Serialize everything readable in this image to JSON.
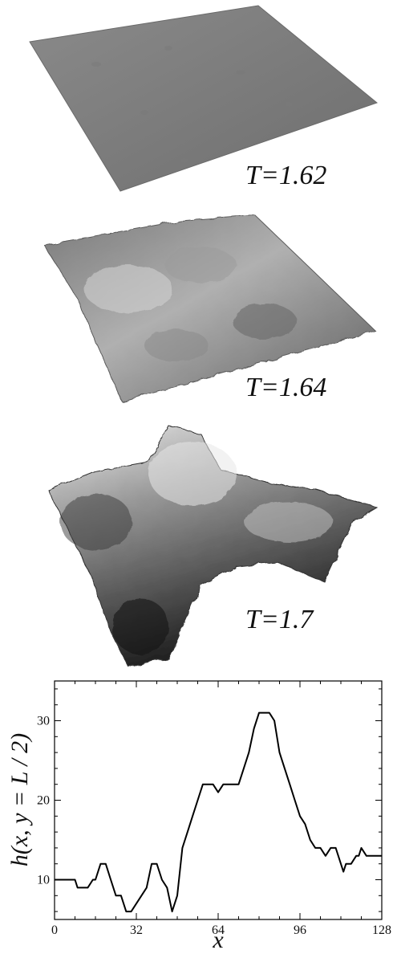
{
  "panels": [
    {
      "label": "T=1.62",
      "roughness": 0.04
    },
    {
      "label": "T=1.64",
      "roughness": 0.35
    },
    {
      "label": "T=1.7",
      "roughness": 1.0
    }
  ],
  "chart_data": {
    "type": "line",
    "xlabel": "x",
    "ylabel": "h(x, y = L / 2)",
    "xlim": [
      0,
      128
    ],
    "ylim": [
      5,
      35
    ],
    "xticks": [
      0,
      32,
      64,
      96,
      128
    ],
    "yticks": [
      10,
      20,
      30
    ],
    "grid": false,
    "series": [
      {
        "x": [
          0,
          8,
          9,
          12,
          13,
          15,
          16,
          18,
          20,
          22,
          24,
          26,
          28,
          30,
          34,
          36,
          38,
          40,
          42,
          44,
          46,
          48,
          50,
          52,
          54,
          56,
          58,
          60,
          62,
          64,
          66,
          67,
          68,
          70,
          72,
          74,
          76,
          78,
          80,
          82,
          84,
          86,
          88,
          90,
          92,
          94,
          96,
          98,
          100,
          102,
          104,
          106,
          108,
          110,
          112,
          113,
          114,
          116,
          118,
          119,
          120,
          122,
          124,
          126,
          128
        ],
        "y": [
          10,
          10,
          9,
          9,
          9,
          10,
          10,
          12,
          12,
          10,
          8,
          8,
          6,
          6,
          8,
          9,
          12,
          12,
          10,
          9,
          6,
          8,
          14,
          16,
          18,
          20,
          22,
          22,
          22,
          21,
          22,
          22,
          22,
          22,
          22,
          24,
          26,
          29,
          31,
          31,
          31,
          30,
          26,
          24,
          22,
          20,
          18,
          17,
          15,
          14,
          14,
          13,
          14,
          14,
          12,
          11,
          12,
          12,
          13,
          13,
          14,
          13,
          13,
          13,
          13
        ]
      }
    ]
  }
}
